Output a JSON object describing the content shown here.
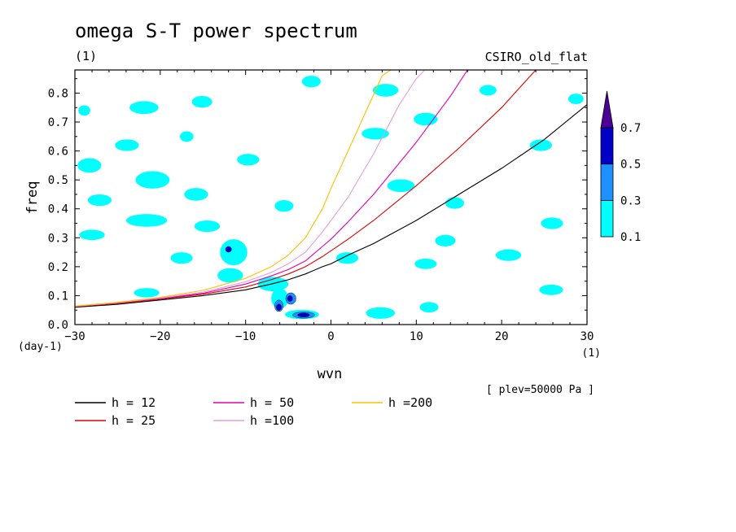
{
  "chart_data": {
    "type": "contour",
    "title": "omega S-T power spectrum",
    "subtitle_left": "(1)",
    "subtitle_right": "CSIRO_old_flat",
    "xlabel": "wvn",
    "ylabel": "freq",
    "x_unit": "(1)",
    "y_unit": "(day-1)",
    "xlim": [
      -30,
      30
    ],
    "ylim": [
      0,
      0.88
    ],
    "xticks": [
      -30,
      -20,
      -10,
      0,
      10,
      20,
      30
    ],
    "yticks": [
      0.0,
      0.1,
      0.2,
      0.3,
      0.4,
      0.5,
      0.6,
      0.7,
      0.8
    ],
    "annotation": "[ plev=50000 Pa ]",
    "colorbar": {
      "levels": [
        0.1,
        0.3,
        0.5,
        0.7
      ],
      "colors": [
        "#00ffff",
        "#1e90ff",
        "#0000c8",
        "#4b0096"
      ],
      "extend": "max"
    },
    "contour_blobs": [
      {
        "x": -21.9,
        "y": 0.75,
        "rx": 1.7,
        "ry": 0.022,
        "level": 1
      },
      {
        "x": -15.1,
        "y": 0.77,
        "rx": 1.2,
        "ry": 0.02,
        "level": 1
      },
      {
        "x": -28.9,
        "y": 0.74,
        "rx": 0.7,
        "ry": 0.018,
        "level": 1
      },
      {
        "x": -16.9,
        "y": 0.65,
        "rx": 0.8,
        "ry": 0.018,
        "level": 1
      },
      {
        "x": -23.9,
        "y": 0.62,
        "rx": 1.4,
        "ry": 0.02,
        "level": 1
      },
      {
        "x": -28.3,
        "y": 0.55,
        "rx": 1.4,
        "ry": 0.025,
        "level": 1
      },
      {
        "x": -20.9,
        "y": 0.5,
        "rx": 2.0,
        "ry": 0.03,
        "level": 1
      },
      {
        "x": -27.1,
        "y": 0.43,
        "rx": 1.4,
        "ry": 0.02,
        "level": 1
      },
      {
        "x": -15.8,
        "y": 0.45,
        "rx": 1.4,
        "ry": 0.022,
        "level": 1
      },
      {
        "x": -21.6,
        "y": 0.36,
        "rx": 2.4,
        "ry": 0.022,
        "level": 1
      },
      {
        "x": -28.0,
        "y": 0.31,
        "rx": 1.5,
        "ry": 0.018,
        "level": 1
      },
      {
        "x": -14.5,
        "y": 0.34,
        "rx": 1.5,
        "ry": 0.02,
        "level": 1
      },
      {
        "x": -17.5,
        "y": 0.23,
        "rx": 1.3,
        "ry": 0.02,
        "level": 1
      },
      {
        "x": -11.4,
        "y": 0.25,
        "rx": 1.6,
        "ry": 0.045,
        "level": 1
      },
      {
        "x": -12.0,
        "y": 0.26,
        "rx": 0.35,
        "ry": 0.01,
        "level": 3
      },
      {
        "x": -11.8,
        "y": 0.17,
        "rx": 1.5,
        "ry": 0.025,
        "level": 1
      },
      {
        "x": -6.8,
        "y": 0.14,
        "rx": 1.8,
        "ry": 0.025,
        "level": 1
      },
      {
        "x": -6.0,
        "y": 0.09,
        "rx": 1.0,
        "ry": 0.035,
        "level": 1
      },
      {
        "x": -6.1,
        "y": 0.065,
        "rx": 0.5,
        "ry": 0.02,
        "level": 2
      },
      {
        "x": -6.1,
        "y": 0.06,
        "rx": 0.3,
        "ry": 0.011,
        "level": 3
      },
      {
        "x": -4.7,
        "y": 0.09,
        "rx": 0.6,
        "ry": 0.02,
        "level": 2
      },
      {
        "x": -4.8,
        "y": 0.09,
        "rx": 0.3,
        "ry": 0.01,
        "level": 3
      },
      {
        "x": -3.4,
        "y": 0.035,
        "rx": 2.0,
        "ry": 0.016,
        "level": 1
      },
      {
        "x": -3.2,
        "y": 0.033,
        "rx": 1.3,
        "ry": 0.011,
        "level": 2
      },
      {
        "x": -3.2,
        "y": 0.033,
        "rx": 0.7,
        "ry": 0.007,
        "level": 3
      },
      {
        "x": -21.6,
        "y": 0.11,
        "rx": 1.5,
        "ry": 0.016,
        "level": 1
      },
      {
        "x": 1.9,
        "y": 0.23,
        "rx": 1.3,
        "ry": 0.02,
        "level": 1
      },
      {
        "x": -2.3,
        "y": 0.84,
        "rx": 1.1,
        "ry": 0.02,
        "level": 1
      },
      {
        "x": 6.4,
        "y": 0.81,
        "rx": 1.5,
        "ry": 0.022,
        "level": 1
      },
      {
        "x": 11.1,
        "y": 0.71,
        "rx": 1.4,
        "ry": 0.022,
        "level": 1
      },
      {
        "x": 5.2,
        "y": 0.66,
        "rx": 1.6,
        "ry": 0.02,
        "level": 1
      },
      {
        "x": 8.2,
        "y": 0.48,
        "rx": 1.6,
        "ry": 0.022,
        "level": 1
      },
      {
        "x": 14.5,
        "y": 0.42,
        "rx": 1.1,
        "ry": 0.02,
        "level": 1
      },
      {
        "x": 24.6,
        "y": 0.62,
        "rx": 1.3,
        "ry": 0.02,
        "level": 1
      },
      {
        "x": 18.4,
        "y": 0.81,
        "rx": 1.0,
        "ry": 0.018,
        "level": 1
      },
      {
        "x": 25.9,
        "y": 0.35,
        "rx": 1.3,
        "ry": 0.02,
        "level": 1
      },
      {
        "x": 13.4,
        "y": 0.29,
        "rx": 1.2,
        "ry": 0.02,
        "level": 1
      },
      {
        "x": 11.1,
        "y": 0.21,
        "rx": 1.3,
        "ry": 0.018,
        "level": 1
      },
      {
        "x": 20.8,
        "y": 0.24,
        "rx": 1.5,
        "ry": 0.02,
        "level": 1
      },
      {
        "x": 25.8,
        "y": 0.12,
        "rx": 1.4,
        "ry": 0.018,
        "level": 1
      },
      {
        "x": 5.8,
        "y": 0.04,
        "rx": 1.7,
        "ry": 0.02,
        "level": 1
      },
      {
        "x": 11.5,
        "y": 0.06,
        "rx": 1.1,
        "ry": 0.018,
        "level": 1
      },
      {
        "x": 28.7,
        "y": 0.78,
        "rx": 0.9,
        "ry": 0.018,
        "level": 1
      },
      {
        "x": -9.7,
        "y": 0.57,
        "rx": 1.3,
        "ry": 0.02,
        "level": 1
      },
      {
        "x": -5.5,
        "y": 0.41,
        "rx": 1.1,
        "ry": 0.02,
        "level": 1
      }
    ],
    "series": [
      {
        "name": "h = 12",
        "color": "#000000",
        "x": [
          -30,
          -25,
          -20,
          -15,
          -10,
          -7,
          -5,
          -3,
          -1,
          0,
          2,
          5,
          10,
          15,
          20,
          25,
          30
        ],
        "y": [
          0.06,
          0.07,
          0.085,
          0.1,
          0.12,
          0.14,
          0.155,
          0.175,
          0.2,
          0.21,
          0.24,
          0.28,
          0.36,
          0.45,
          0.54,
          0.64,
          0.76
        ]
      },
      {
        "name": "h = 25",
        "color": "#dd0000",
        "x": [
          -30,
          -25,
          -20,
          -15,
          -10,
          -7,
          -5,
          -3,
          -1,
          0,
          2,
          5,
          10,
          15,
          20,
          24
        ],
        "y": [
          0.062,
          0.073,
          0.088,
          0.105,
          0.13,
          0.155,
          0.175,
          0.2,
          0.235,
          0.255,
          0.295,
          0.36,
          0.48,
          0.61,
          0.75,
          0.88
        ]
      },
      {
        "name": "h = 50",
        "color": "#e000b0",
        "x": [
          -30,
          -25,
          -20,
          -15,
          -10,
          -7,
          -5,
          -3,
          -1,
          0,
          2,
          5,
          10,
          14,
          16
        ],
        "y": [
          0.063,
          0.075,
          0.09,
          0.108,
          0.14,
          0.168,
          0.19,
          0.22,
          0.27,
          0.295,
          0.355,
          0.45,
          0.63,
          0.79,
          0.88
        ]
      },
      {
        "name": "h =100",
        "color": "#dda0dd",
        "x": [
          -30,
          -25,
          -20,
          -15,
          -10,
          -7,
          -5,
          -3,
          -1,
          0,
          2,
          5,
          8,
          10,
          11
        ],
        "y": [
          0.063,
          0.076,
          0.092,
          0.112,
          0.148,
          0.18,
          0.21,
          0.25,
          0.32,
          0.36,
          0.44,
          0.59,
          0.76,
          0.85,
          0.88
        ]
      },
      {
        "name": "h =200",
        "color": "#ffc000",
        "x": [
          -30,
          -25,
          -20,
          -15,
          -10,
          -7,
          -5,
          -3,
          -1,
          0,
          2,
          4,
          6,
          7
        ],
        "y": [
          0.064,
          0.077,
          0.094,
          0.118,
          0.16,
          0.2,
          0.24,
          0.3,
          0.4,
          0.47,
          0.6,
          0.73,
          0.86,
          0.88
        ]
      }
    ]
  }
}
